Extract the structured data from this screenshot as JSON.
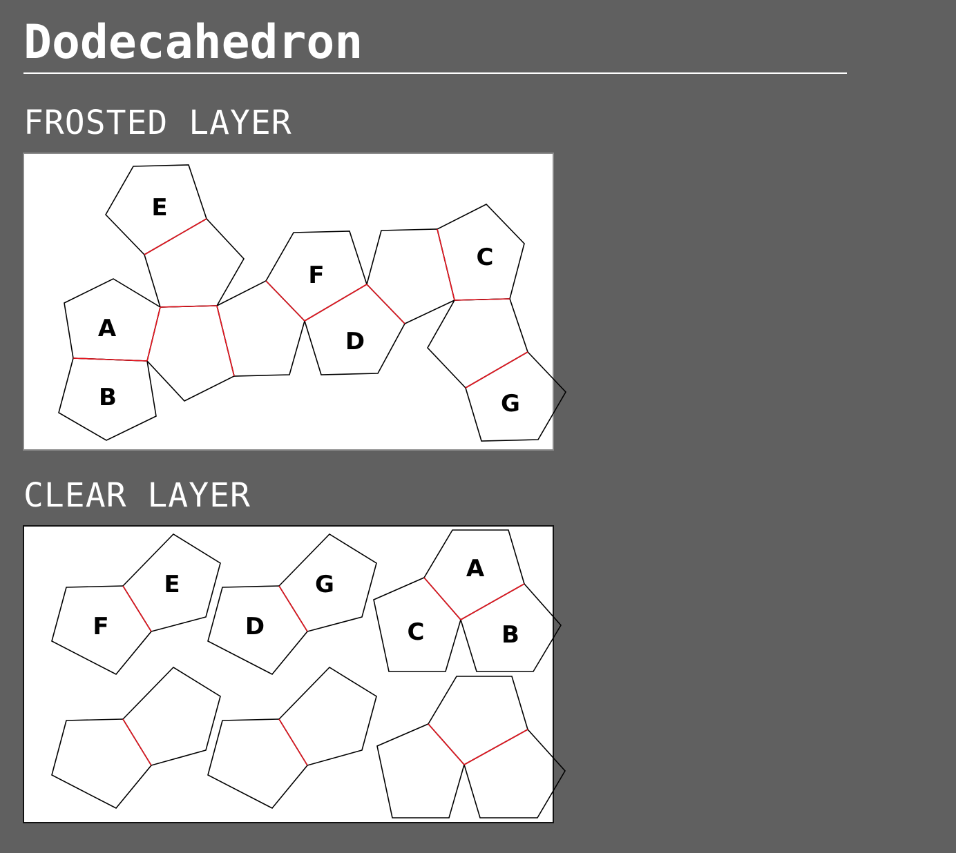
{
  "page": {
    "title": "Dodecahedron"
  },
  "colors": {
    "background": "#606060",
    "panel": "#ffffff",
    "outline": "#000000",
    "fold_line": "#e8141e",
    "text": "#ffffff"
  },
  "frosted_layer": {
    "heading": "FROSTED LAYER",
    "face_labels": {
      "e": "E",
      "a": "A",
      "b": "B",
      "f": "F",
      "d": "D",
      "c": "C",
      "g": "G"
    }
  },
  "clear_layer": {
    "heading": "CLEAR LAYER",
    "groups": [
      {
        "labels": [
          "F",
          "E"
        ]
      },
      {
        "labels": [
          "D",
          "G"
        ]
      },
      {
        "labels": [
          "A",
          "C",
          "B"
        ]
      }
    ]
  }
}
